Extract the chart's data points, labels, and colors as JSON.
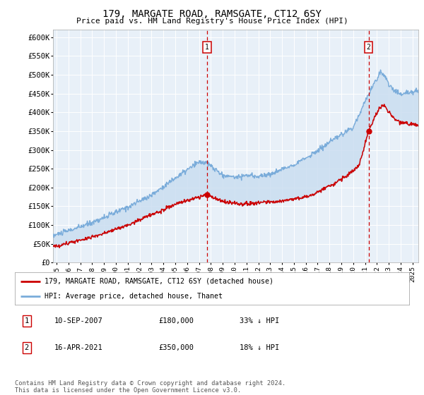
{
  "title": "179, MARGATE ROAD, RAMSGATE, CT12 6SY",
  "subtitle": "Price paid vs. HM Land Registry's House Price Index (HPI)",
  "ylim": [
    0,
    620000
  ],
  "xlim_start": 1994.7,
  "xlim_end": 2025.5,
  "sale1_x": 2007.69,
  "sale1_y": 180000,
  "sale2_x": 2021.29,
  "sale2_y": 350000,
  "legend_line1": "179, MARGATE ROAD, RAMSGATE, CT12 6SY (detached house)",
  "legend_line2": "HPI: Average price, detached house, Thanet",
  "row1_num": "1",
  "row1_date": "10-SEP-2007",
  "row1_price": "£180,000",
  "row1_pct": "33% ↓ HPI",
  "row2_num": "2",
  "row2_date": "16-APR-2021",
  "row2_price": "£350,000",
  "row2_pct": "18% ↓ HPI",
  "footnote1": "Contains HM Land Registry data © Crown copyright and database right 2024.",
  "footnote2": "This data is licensed under the Open Government Licence v3.0.",
  "red_color": "#cc0000",
  "blue_color": "#7aacda",
  "fill_color": "#c8dcf0",
  "plot_bg": "#e8f0f8",
  "grid_color": "#ffffff"
}
